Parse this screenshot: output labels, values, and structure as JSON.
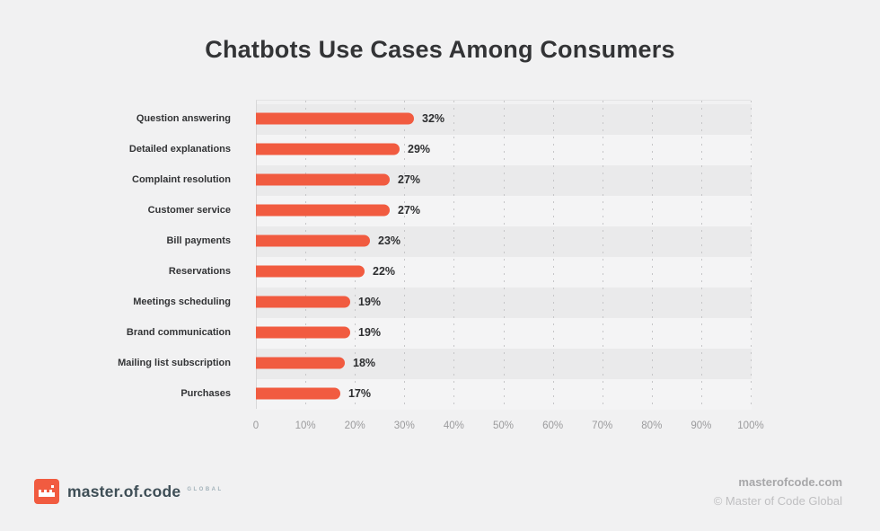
{
  "title": "Chatbots Use Cases Among Consumers",
  "chart_data": {
    "type": "bar",
    "orientation": "horizontal",
    "title": "Chatbots Use Cases Among Consumers",
    "categories": [
      "Question answering",
      "Detailed explanations",
      "Complaint resolution",
      "Customer service",
      "Bill payments",
      "Reservations",
      "Meetings scheduling",
      "Brand communication",
      "Mailing list subscription",
      "Purchases"
    ],
    "values": [
      32,
      29,
      27,
      27,
      23,
      22,
      19,
      19,
      18,
      17
    ],
    "value_labels": [
      "32%",
      "29%",
      "27%",
      "27%",
      "23%",
      "22%",
      "19%",
      "19%",
      "18%",
      "17%"
    ],
    "x_ticks": [
      "0",
      "10%",
      "20%",
      "30%",
      "40%",
      "50%",
      "60%",
      "70%",
      "80%",
      "90%",
      "100%"
    ],
    "xlim": [
      0,
      100
    ],
    "xlabel": "",
    "ylabel": "",
    "grid": "vertical-dotted",
    "legend": "none",
    "bar_color": "#F15B40",
    "row_band_dark": "#EAEAEB",
    "row_band_light": "#F4F4F5"
  },
  "colors": {
    "background": "#F1F1F2",
    "accent": "#F15B40",
    "title_text": "#333436",
    "axis_text": "#9B9B9D",
    "grid": "#C6C6C8"
  },
  "footer": {
    "logo_icon": "pixel-crown-icon",
    "brand": "master.of.code",
    "brand_suffix": "GLOBAL",
    "website": "masterofcode.com",
    "copyright": "© Master of Code Global"
  }
}
